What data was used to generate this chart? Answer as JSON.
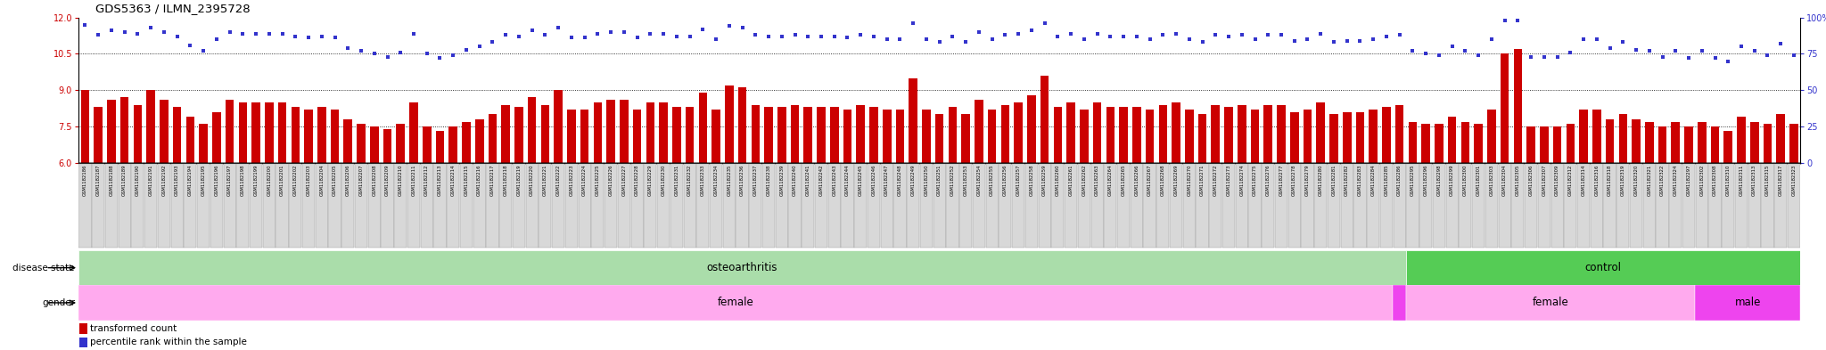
{
  "title": "GDS5363 / ILMN_2395728",
  "ylim_left": [
    6,
    12
  ],
  "ylim_right": [
    0,
    100
  ],
  "yticks_left": [
    6,
    7.5,
    9,
    10.5,
    12
  ],
  "yticks_right": [
    0,
    25,
    50,
    75,
    100
  ],
  "bar_color": "#cc0000",
  "dot_color": "#3333cc",
  "sample_labels": [
    "GSM1182186",
    "GSM1182187",
    "GSM1182188",
    "GSM1182189",
    "GSM1182190",
    "GSM1182191",
    "GSM1182192",
    "GSM1182193",
    "GSM1182194",
    "GSM1182195",
    "GSM1182196",
    "GSM1182197",
    "GSM1182198",
    "GSM1182199",
    "GSM1182200",
    "GSM1182201",
    "GSM1182202",
    "GSM1182203",
    "GSM1182204",
    "GSM1182205",
    "GSM1182206",
    "GSM1182207",
    "GSM1182208",
    "GSM1182209",
    "GSM1182210",
    "GSM1182211",
    "GSM1182212",
    "GSM1182213",
    "GSM1182214",
    "GSM1182215",
    "GSM1182216",
    "GSM1182217",
    "GSM1182218",
    "GSM1182219",
    "GSM1182220",
    "GSM1182221",
    "GSM1182222",
    "GSM1182223",
    "GSM1182224",
    "GSM1182225",
    "GSM1182226",
    "GSM1182227",
    "GSM1182228",
    "GSM1182229",
    "GSM1182230",
    "GSM1182231",
    "GSM1182232",
    "GSM1182233",
    "GSM1182234",
    "GSM1182235",
    "GSM1182236",
    "GSM1182237",
    "GSM1182238",
    "GSM1182239",
    "GSM1182240",
    "GSM1182241",
    "GSM1182242",
    "GSM1182243",
    "GSM1182244",
    "GSM1182245",
    "GSM1182246",
    "GSM1182247",
    "GSM1182248",
    "GSM1182249",
    "GSM1182250",
    "GSM1182251",
    "GSM1182252",
    "GSM1182253",
    "GSM1182254",
    "GSM1182255",
    "GSM1182256",
    "GSM1182257",
    "GSM1182258",
    "GSM1182259",
    "GSM1182260",
    "GSM1182261",
    "GSM1182262",
    "GSM1182263",
    "GSM1182264",
    "GSM1182265",
    "GSM1182266",
    "GSM1182267",
    "GSM1182268",
    "GSM1182269",
    "GSM1182270",
    "GSM1182271",
    "GSM1182272",
    "GSM1182273",
    "GSM1182274",
    "GSM1182275",
    "GSM1182276",
    "GSM1182277",
    "GSM1182278",
    "GSM1182279",
    "GSM1182280",
    "GSM1182281",
    "GSM1182282",
    "GSM1182283",
    "GSM1182284",
    "GSM1182285",
    "GSM1182286",
    "GSM1182295",
    "GSM1182296",
    "GSM1182298",
    "GSM1182299",
    "GSM1182300",
    "GSM1182301",
    "GSM1182303",
    "GSM1182304",
    "GSM1182305",
    "GSM1182306",
    "GSM1182307",
    "GSM1182309",
    "GSM1182312",
    "GSM1182314",
    "GSM1182316",
    "GSM1182318",
    "GSM1182319",
    "GSM1182320",
    "GSM1182321",
    "GSM1182322",
    "GSM1182324",
    "GSM1182297",
    "GSM1182302",
    "GSM1182308",
    "GSM1182310",
    "GSM1182311",
    "GSM1182313",
    "GSM1182315",
    "GSM1182317",
    "GSM1182323"
  ],
  "bar_values": [
    9.0,
    8.3,
    8.6,
    8.7,
    8.4,
    9.0,
    8.6,
    8.3,
    7.9,
    7.6,
    8.1,
    8.6,
    8.5,
    8.5,
    8.5,
    8.5,
    8.3,
    8.2,
    8.3,
    8.2,
    7.8,
    7.6,
    7.5,
    7.4,
    7.6,
    8.5,
    7.5,
    7.3,
    7.5,
    7.7,
    7.8,
    8.0,
    8.4,
    8.3,
    8.7,
    8.4,
    9.0,
    8.2,
    8.2,
    8.5,
    8.6,
    8.6,
    8.2,
    8.5,
    8.5,
    8.3,
    8.3,
    8.9,
    8.2,
    9.2,
    9.1,
    8.4,
    8.3,
    8.3,
    8.4,
    8.3,
    8.3,
    8.3,
    8.2,
    8.4,
    8.3,
    8.2,
    8.2,
    9.5,
    8.2,
    8.0,
    8.3,
    8.0,
    8.6,
    8.2,
    8.4,
    8.5,
    8.8,
    9.6,
    8.3,
    8.5,
    8.2,
    8.5,
    8.3,
    8.3,
    8.3,
    8.2,
    8.4,
    8.5,
    8.2,
    8.0,
    8.4,
    8.3,
    8.4,
    8.2,
    8.4,
    8.4,
    8.1,
    8.2,
    8.5,
    8.0,
    8.1,
    8.1,
    8.2,
    8.3,
    8.4,
    7.7,
    7.6,
    7.6,
    7.9,
    7.7,
    7.6,
    8.2,
    10.5,
    10.7,
    7.5,
    7.5,
    7.5,
    7.6,
    8.2,
    8.2,
    7.8,
    8.0,
    7.8,
    7.7,
    7.5,
    7.7,
    7.5,
    7.7,
    7.5,
    7.3,
    7.9,
    7.7,
    7.6,
    8.0,
    7.6
  ],
  "dot_values": [
    95,
    88,
    91,
    90,
    89,
    93,
    90,
    87,
    81,
    77,
    85,
    90,
    89,
    89,
    89,
    89,
    87,
    86,
    87,
    86,
    79,
    77,
    75,
    73,
    76,
    89,
    75,
    72,
    74,
    78,
    80,
    83,
    88,
    87,
    91,
    88,
    93,
    86,
    86,
    89,
    90,
    90,
    86,
    89,
    89,
    87,
    87,
    92,
    85,
    94,
    93,
    88,
    87,
    87,
    88,
    87,
    87,
    87,
    86,
    88,
    87,
    85,
    85,
    96,
    85,
    83,
    87,
    83,
    90,
    85,
    88,
    89,
    91,
    96,
    87,
    89,
    85,
    89,
    87,
    87,
    87,
    85,
    88,
    89,
    85,
    83,
    88,
    87,
    88,
    85,
    88,
    88,
    84,
    85,
    89,
    83,
    84,
    84,
    85,
    87,
    88,
    77,
    75,
    74,
    80,
    77,
    74,
    85,
    98,
    98,
    73,
    73,
    73,
    76,
    85,
    85,
    79,
    83,
    78,
    77,
    73,
    77,
    72,
    77,
    72,
    70,
    80,
    77,
    74,
    82,
    74
  ],
  "n_total": 131,
  "n_oa": 101,
  "n_oa_female": 100,
  "n_oa_male": 1,
  "n_ctrl": 30,
  "n_ctrl_female": 22,
  "n_ctrl_male": 8,
  "oa_color": "#aaddaa",
  "ctrl_color": "#55cc55",
  "female_color": "#ffaaee",
  "male_color": "#ee44ee",
  "label_bg_color": "#cccccc",
  "label_box_color": "#d8d8d8",
  "label_box_edge": "#999999",
  "legend_bar_label": "transformed count",
  "legend_dot_label": "percentile rank within the sample"
}
